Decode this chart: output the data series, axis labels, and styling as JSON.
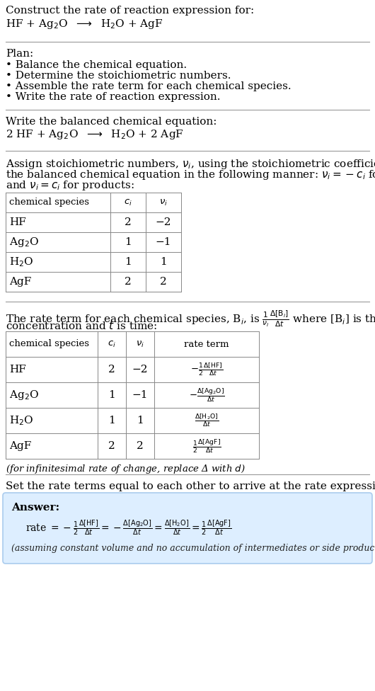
{
  "bg_color": "#ffffff",
  "text_color": "#000000",
  "answer_bg": "#ddeeff",
  "answer_border": "#aaccee",
  "title_text": "Construct the rate of reaction expression for:",
  "reaction_unbalanced": "HF + Ag$_2$O  $\\longrightarrow$  H$_2$O + AgF",
  "plan_header": "Plan:",
  "plan_items": [
    "• Balance the chemical equation.",
    "• Determine the stoichiometric numbers.",
    "• Assemble the rate term for each chemical species.",
    "• Write the rate of reaction expression."
  ],
  "balanced_header": "Write the balanced chemical equation:",
  "reaction_balanced": "2 HF + Ag$_2$O  $\\longrightarrow$  H$_2$O + 2 AgF",
  "stoich_intro": "Assign stoichiometric numbers, $\\nu_i$, using the stoichiometric coefficients, $c_i$, from the balanced chemical equation in the following manner: $\\nu_i = -c_i$ for reactants and $\\nu_i = c_i$ for products:",
  "table1_cols": [
    "chemical species",
    "$c_i$",
    "$\\nu_i$"
  ],
  "table1_rows": [
    [
      "HF",
      "2",
      "−2"
    ],
    [
      "Ag$_2$O",
      "1",
      "−1"
    ],
    [
      "H$_2$O",
      "1",
      "1"
    ],
    [
      "AgF",
      "2",
      "2"
    ]
  ],
  "rate_intro_p1": "The rate term for each chemical species, B$_i$, is $\\frac{1}{\\nu_i}\\frac{\\Delta[\\mathrm{B}_i]}{\\Delta t}$ where [B$_i$] is the amount",
  "rate_intro_p2": "concentration and $t$ is time:",
  "table2_cols": [
    "chemical species",
    "$c_i$",
    "$\\nu_i$",
    "rate term"
  ],
  "table2_rows": [
    [
      "HF",
      "2",
      "−2",
      "$-\\frac{1}{2}\\frac{\\Delta[\\mathrm{HF}]}{\\Delta t}$"
    ],
    [
      "Ag$_2$O",
      "1",
      "−1",
      "$-\\frac{\\Delta[\\mathrm{Ag_2O}]}{\\Delta t}$"
    ],
    [
      "H$_2$O",
      "1",
      "1",
      "$\\frac{\\Delta[\\mathrm{H_2O}]}{\\Delta t}$"
    ],
    [
      "AgF",
      "2",
      "2",
      "$\\frac{1}{2}\\frac{\\Delta[\\mathrm{AgF}]}{\\Delta t}$"
    ]
  ],
  "infinitesimal_note": "(for infinitesimal rate of change, replace Δ with $d$)",
  "set_rate_header": "Set the rate terms equal to each other to arrive at the rate expression:",
  "answer_label": "Answer:",
  "answer_eq": "rate $= -\\frac{1}{2}\\frac{\\Delta[\\mathrm{HF}]}{\\Delta t} = -\\frac{\\Delta[\\mathrm{Ag_2O}]}{\\Delta t} = \\frac{\\Delta[\\mathrm{H_2O}]}{\\Delta t} = \\frac{1}{2}\\frac{\\Delta[\\mathrm{AgF}]}{\\Delta t}$",
  "answer_note": "(assuming constant volume and no accumulation of intermediates or side products)"
}
